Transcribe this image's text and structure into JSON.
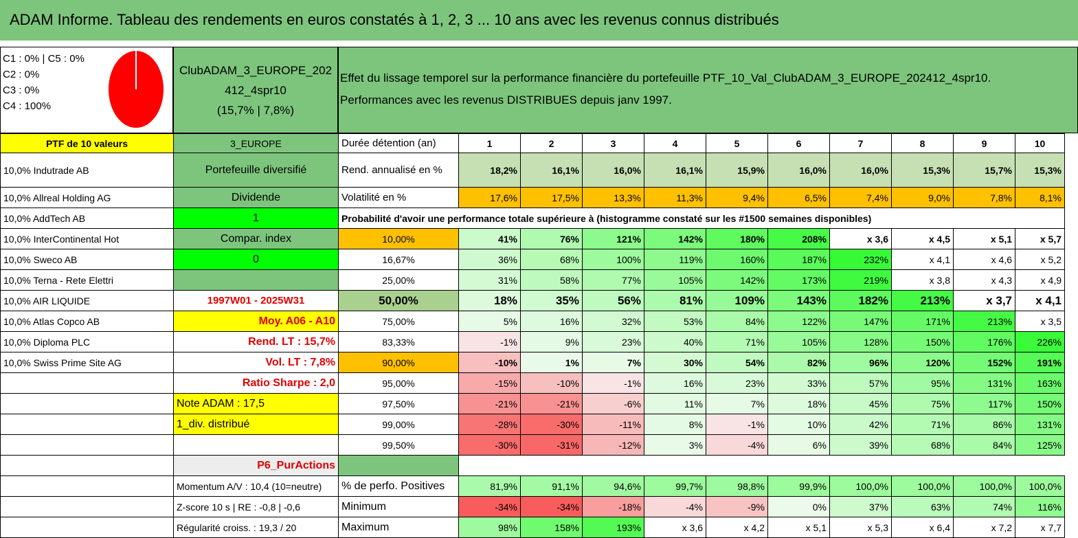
{
  "title": "ADAM Informe. Tableau des rendements en euros constatés à 1, 2, 3 ... 10 ans avec les revenus connus distribués",
  "classes": [
    "C1 : 0% | C5 : 0%",
    "C2 : 0%",
    "C3 : 0%",
    "C4 : 100%"
  ],
  "pie_color": "#ff0000",
  "club": {
    "line1": "ClubADAM_3_EUROPE_202",
    "line2": "412_4spr10",
    "line3": "(15,7% | 7,8%)"
  },
  "effet": {
    "line1": "Effet du lissage temporel sur la performance financière du portefeuille PTF_10_Val_ClubADAM_3_EUROPE_202412_4spr10.",
    "line2": "Performances avec les revenus DISTRIBUES depuis janv 1997."
  },
  "left_header": "PTF de 10 valeurs",
  "mid_header": "3_EUROPE",
  "duree_label": "Durée détention (an)",
  "years": [
    "1",
    "2",
    "3",
    "4",
    "5",
    "6",
    "7",
    "8",
    "9",
    "10"
  ],
  "holdings": [
    "10,0% Indutrade AB",
    "10,0% Allreal Holding AG",
    "10,0% AddTech AB",
    "10,0% InterContinental Hot",
    "10,0% Sweco AB",
    "10,0% Terna - Rete Elettri",
    "10,0% AIR LIQUIDE",
    "10,0% Atlas Copco AB",
    "10,0% Diploma PLC",
    "10,0% Swiss Prime Site AG"
  ],
  "mid_labels": {
    "diversifie": "Portefeuille diversifié",
    "dividende": "Dividende",
    "one": "1",
    "compar": "Compar. index",
    "zero": "0",
    "periode": "1997W01 - 2025W31",
    "moy": "Moy. A06 - A10",
    "rend_lt": "Rend. LT : 15,7%",
    "vol_lt": "Vol. LT : 7,8%",
    "sharpe": "Ratio Sharpe : 2,0",
    "note": "Note ADAM : 17,5",
    "div": "1_div. distribué",
    "p6": "P6_PurActions",
    "momentum": "Momentum A/V : 10,4 (10=neutre)",
    "zscore": "Z-score 10 s | RE : -0,8 | -0,6",
    "regularite": "Régularité croiss. : 19,3 / 20"
  },
  "rend": {
    "label": "Rend. annualisé en %",
    "values": [
      "18,2%",
      "16,1%",
      "16,0%",
      "16,1%",
      "15,9%",
      "16,0%",
      "16,0%",
      "15,3%",
      "15,7%",
      "15,3%"
    ]
  },
  "vol": {
    "label": "Volatilité en %",
    "values": [
      "17,6%",
      "17,5%",
      "13,3%",
      "11,3%",
      "9,4%",
      "6,5%",
      "7,4%",
      "9,0%",
      "7,8%",
      "8,1%"
    ]
  },
  "proba_title": "Probabilité d'avoir une performance totale supérieure à (histogramme constaté sur les #1500 semaines disponibles)",
  "proba_rows": [
    {
      "p": "10,00%",
      "values": [
        "41%",
        "76%",
        "121%",
        "142%",
        "180%",
        "208%",
        "x 3,6",
        "x 4,5",
        "x 5,1",
        "x 5,7"
      ]
    },
    {
      "p": "16,67%",
      "values": [
        "36%",
        "68%",
        "100%",
        "119%",
        "160%",
        "187%",
        "232%",
        "x 4,1",
        "x 4,6",
        "x 5,2"
      ]
    },
    {
      "p": "25,00%",
      "values": [
        "31%",
        "58%",
        "77%",
        "105%",
        "142%",
        "173%",
        "219%",
        "x 3,8",
        "x 4,3",
        "x 4,9"
      ]
    },
    {
      "p": "50,00%",
      "values": [
        "18%",
        "35%",
        "56%",
        "81%",
        "109%",
        "143%",
        "182%",
        "213%",
        "x 3,7",
        "x 4,1"
      ]
    },
    {
      "p": "75,00%",
      "values": [
        "5%",
        "16%",
        "32%",
        "53%",
        "84%",
        "122%",
        "147%",
        "171%",
        "213%",
        "x 3,5"
      ]
    },
    {
      "p": "83,33%",
      "values": [
        "-1%",
        "9%",
        "23%",
        "40%",
        "71%",
        "105%",
        "128%",
        "150%",
        "176%",
        "226%"
      ]
    },
    {
      "p": "90,00%",
      "values": [
        "-10%",
        "1%",
        "7%",
        "30%",
        "54%",
        "82%",
        "96%",
        "120%",
        "152%",
        "191%"
      ]
    },
    {
      "p": "95,00%",
      "values": [
        "-15%",
        "-10%",
        "-1%",
        "16%",
        "23%",
        "33%",
        "57%",
        "95%",
        "131%",
        "163%"
      ]
    },
    {
      "p": "97,50%",
      "values": [
        "-21%",
        "-21%",
        "-6%",
        "11%",
        "7%",
        "18%",
        "45%",
        "75%",
        "117%",
        "150%"
      ]
    },
    {
      "p": "99,00%",
      "values": [
        "-28%",
        "-30%",
        "-11%",
        "8%",
        "-1%",
        "10%",
        "42%",
        "71%",
        "86%",
        "131%"
      ]
    },
    {
      "p": "99,50%",
      "values": [
        "-30%",
        "-31%",
        "-12%",
        "3%",
        "-4%",
        "6%",
        "39%",
        "68%",
        "84%",
        "125%"
      ]
    }
  ],
  "positives": {
    "label": "% de perfo. Positives",
    "values": [
      "81,9%",
      "91,1%",
      "94,6%",
      "99,7%",
      "98,8%",
      "99,9%",
      "100,0%",
      "100,0%",
      "100,0%",
      "100,0%"
    ]
  },
  "minimum": {
    "label": "Minimum",
    "values": [
      "-34%",
      "-34%",
      "-18%",
      "-4%",
      "-9%",
      "0%",
      "37%",
      "63%",
      "74%",
      "116%"
    ]
  },
  "maximum": {
    "label": "Maximum",
    "values": [
      "98%",
      "158%",
      "193%",
      "x 3,6",
      "x 4,2",
      "x 5,1",
      "x 5,3",
      "x 6,4",
      "x 7,2",
      "x 7,7"
    ]
  }
}
